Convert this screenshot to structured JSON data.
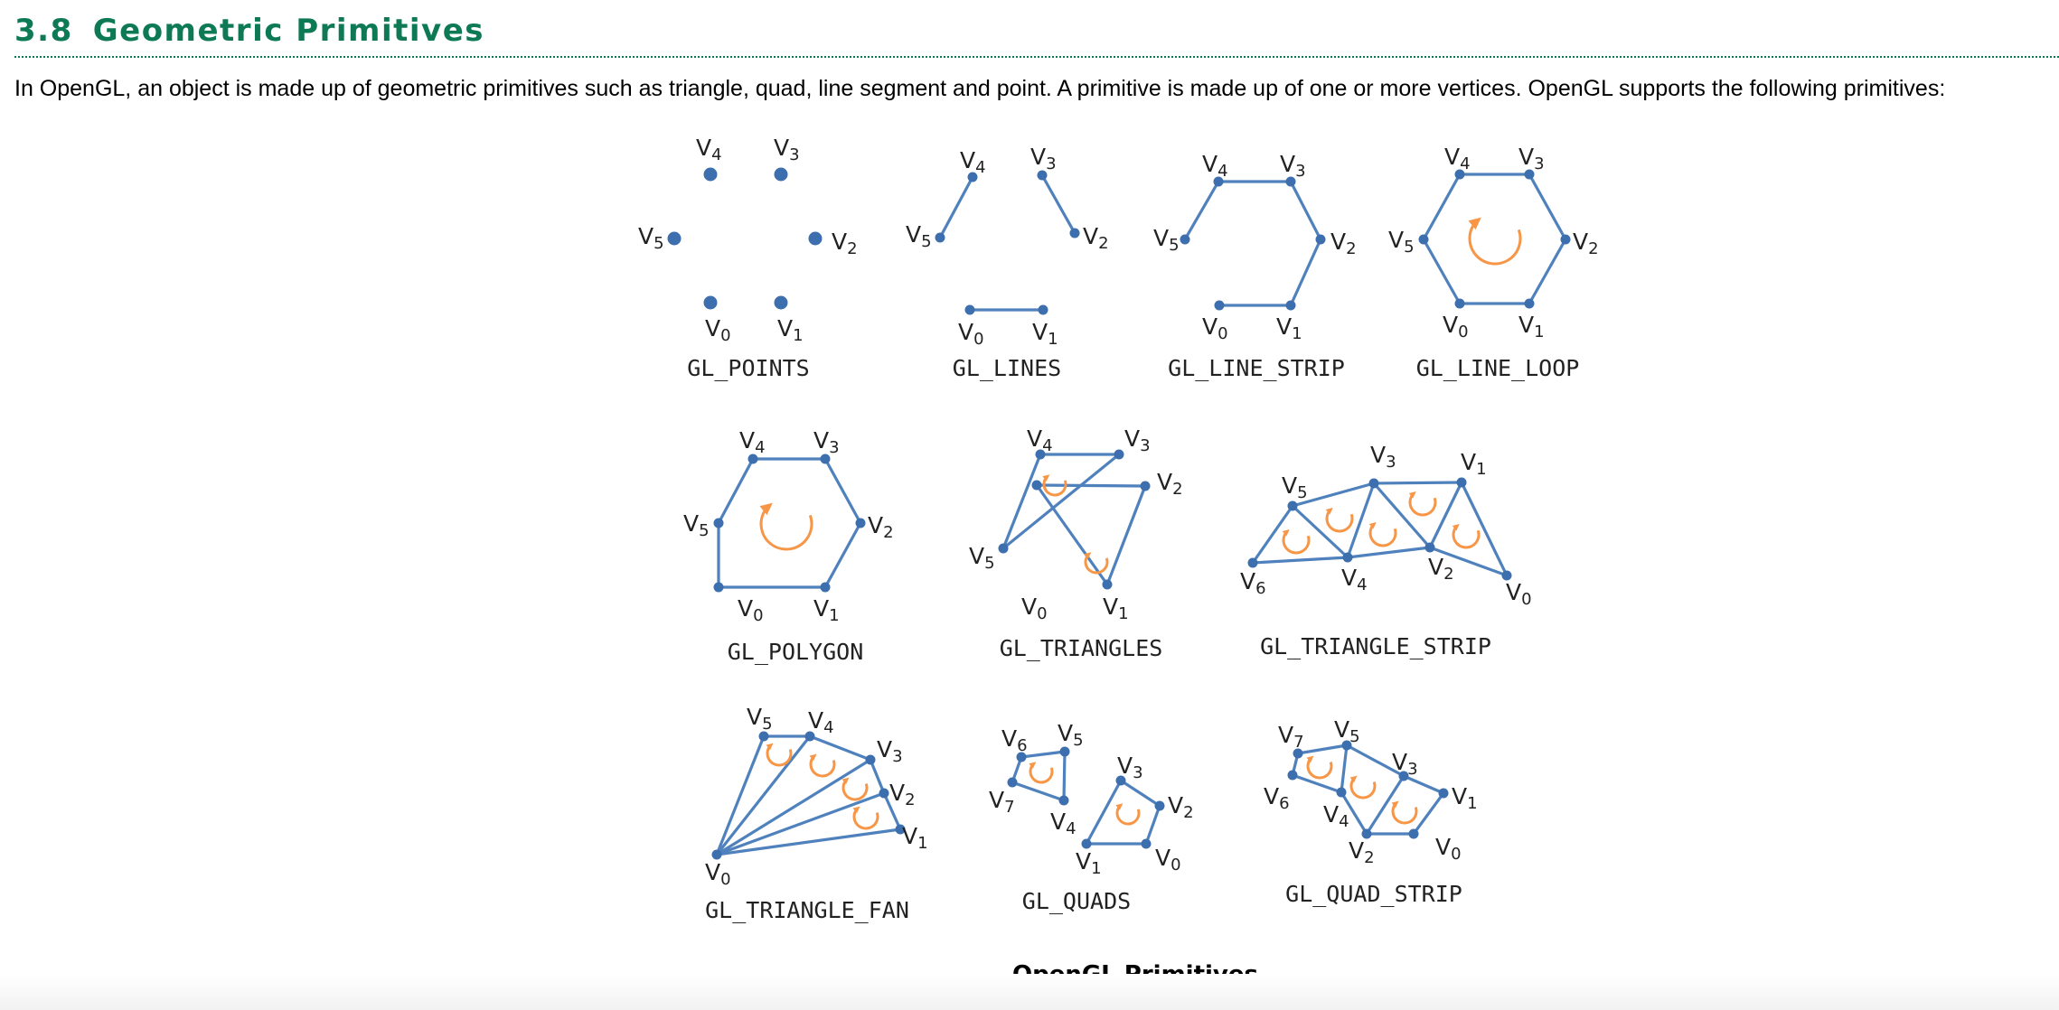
{
  "section": {
    "number": "3.8",
    "title": "Geometric Primitives"
  },
  "intro": "In OpenGL, an object is made up of geometric primitives such as triangle, quad, line segment and point. A primitive is made up of one or more vertices. OpenGL supports the following primitives:",
  "figure_caption": "OpenGL Primitives",
  "primitives": [
    {
      "id": "points",
      "label": "GL_POINTS"
    },
    {
      "id": "lines",
      "label": "GL_LINES"
    },
    {
      "id": "line-strip",
      "label": "GL_LINE_STRIP"
    },
    {
      "id": "line-loop",
      "label": "GL_LINE_LOOP"
    },
    {
      "id": "polygon",
      "label": "GL_POLYGON"
    },
    {
      "id": "triangles",
      "label": "GL_TRIANGLES"
    },
    {
      "id": "triangle-strip",
      "label": "GL_TRIANGLE_STRIP"
    },
    {
      "id": "triangle-fan",
      "label": "GL_TRIANGLE_FAN"
    },
    {
      "id": "quads",
      "label": "GL_QUADS"
    },
    {
      "id": "quad-strip",
      "label": "GL_QUAD_STRIP"
    }
  ],
  "vertex_prefix": "V",
  "colors": {
    "heading": "#0e7a55",
    "edge": "#4f81bd",
    "vertex": "#3d6fae",
    "winding_arrow": "#f79646"
  }
}
